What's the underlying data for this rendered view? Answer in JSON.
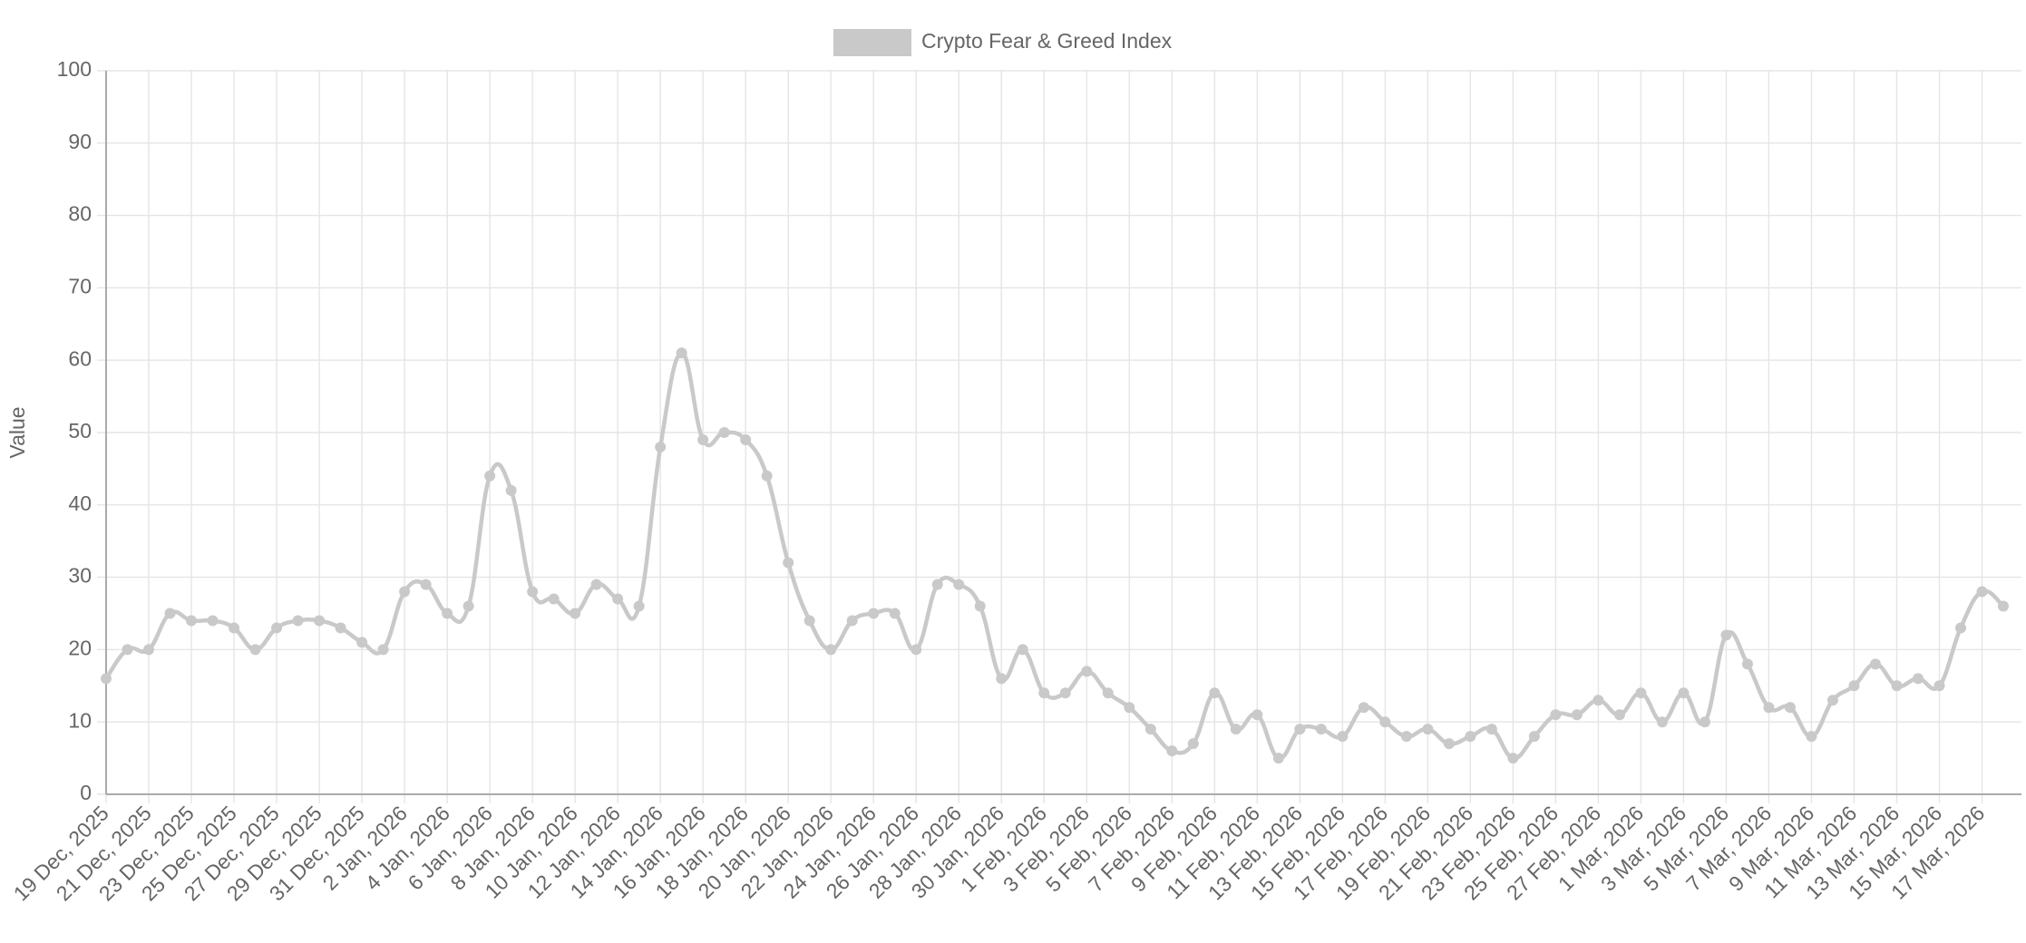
{
  "chart_data": {
    "type": "line",
    "y_label": "Value",
    "categories": [
      "19 Dec, 2025",
      null,
      "21 Dec, 2025",
      null,
      "23 Dec, 2025",
      null,
      "25 Dec, 2025",
      null,
      "27 Dec, 2025",
      null,
      "29 Dec, 2025",
      null,
      "31 Dec, 2025",
      null,
      "2 Jan, 2026",
      null,
      "4 Jan, 2026",
      null,
      "6 Jan, 2026",
      null,
      "8 Jan, 2026",
      null,
      "10 Jan, 2026",
      null,
      "12 Jan, 2026",
      null,
      "14 Jan, 2026",
      null,
      "16 Jan, 2026",
      null,
      "18 Jan, 2026",
      null,
      "20 Jan, 2026",
      null,
      "22 Jan, 2026",
      null,
      "24 Jan, 2026",
      null,
      "26 Jan, 2026",
      null,
      "28 Jan, 2026",
      null,
      "30 Jan, 2026",
      null,
      "1 Feb, 2026",
      null,
      "3 Feb, 2026",
      null,
      "5 Feb, 2026",
      null,
      "7 Feb, 2026",
      null,
      "9 Feb, 2026",
      null,
      "11 Feb, 2026",
      null,
      "13 Feb, 2026",
      null,
      "15 Feb, 2026",
      null,
      "17 Feb, 2026",
      null,
      "19 Feb, 2026",
      null,
      "21 Feb, 2026",
      null,
      "23 Feb, 2026",
      null,
      "25 Feb, 2026",
      null,
      "27 Feb, 2026",
      null,
      "1 Mar, 2026",
      null,
      "3 Mar, 2026",
      null,
      "5 Mar, 2026",
      null,
      "7 Mar, 2026",
      null,
      "9 Mar, 2026",
      null,
      "11 Mar, 2026",
      null,
      "13 Mar, 2026",
      null,
      "15 Mar, 2026",
      null,
      "17 Mar, 2026",
      null
    ],
    "series": [
      {
        "name": "Crypto Fear & Greed Index",
        "color": "#c9c9c9",
        "values": [
          16,
          20,
          20,
          25,
          24,
          24,
          23,
          20,
          23,
          24,
          24,
          23,
          21,
          20,
          28,
          29,
          25,
          26,
          44,
          42,
          28,
          27,
          25,
          29,
          27,
          26,
          48,
          61,
          49,
          50,
          49,
          44,
          32,
          24,
          20,
          24,
          25,
          25,
          20,
          29,
          29,
          26,
          16,
          20,
          14,
          14,
          17,
          14,
          12,
          9,
          6,
          7,
          14,
          9,
          11,
          5,
          9,
          9,
          8,
          12,
          10,
          8,
          9,
          7,
          8,
          9,
          5,
          8,
          11,
          11,
          13,
          11,
          14,
          10,
          14,
          10,
          22,
          18,
          12,
          12,
          8,
          13,
          15,
          18,
          15,
          16,
          15,
          23,
          28,
          26
        ]
      }
    ],
    "ylim": [
      0,
      100
    ],
    "yticks": [
      0,
      10,
      20,
      30,
      40,
      50,
      60,
      70,
      80,
      90,
      100
    ],
    "grid": true,
    "legend": "top"
  }
}
